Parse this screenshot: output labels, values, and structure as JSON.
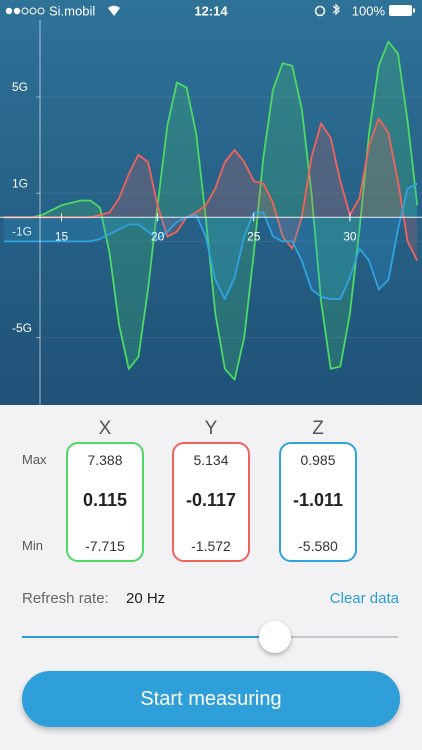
{
  "status_bar": {
    "carrier": "Si.mobil",
    "time": "12:14",
    "battery": "100%"
  },
  "chart_data": {
    "type": "line",
    "x": [
      12,
      12.5,
      13,
      13.5,
      14,
      14.5,
      15,
      15.5,
      16,
      16.5,
      17,
      17.5,
      18,
      18.5,
      19,
      19.5,
      20,
      20.5,
      21,
      21.5,
      22,
      22.5,
      23,
      23.5,
      24,
      24.5,
      25,
      25.5,
      26,
      26.5,
      27,
      27.5,
      28,
      28.5,
      29,
      29.5,
      30,
      30.5,
      31,
      31.5,
      32,
      32.5,
      33,
      33.5
    ],
    "series": [
      {
        "name": "X",
        "color": "#4cd964",
        "values": [
          0,
          0,
          0,
          0,
          0.1,
          0.3,
          0.5,
          0.6,
          0.7,
          0.7,
          0.4,
          -1.5,
          -4.5,
          -6.3,
          -5.8,
          -3,
          0.5,
          3.8,
          5.6,
          5.4,
          3.5,
          0,
          -4,
          -6.3,
          -6.75,
          -5,
          -1.5,
          2.5,
          5.3,
          6.4,
          6.3,
          4.5,
          1,
          -3.5,
          -6.3,
          -6.2,
          -4,
          -0.5,
          3.5,
          6.3,
          7.3,
          6.8,
          4,
          0.5
        ]
      },
      {
        "name": "Y",
        "color": "#f0635a",
        "values": [
          0,
          0,
          0,
          0,
          0,
          0,
          0,
          0,
          0,
          0,
          0.1,
          0.2,
          0.8,
          1.8,
          2.6,
          2.3,
          0.5,
          -0.8,
          -0.6,
          0,
          0.2,
          0.5,
          1.2,
          2.3,
          2.8,
          2.3,
          1.5,
          1.4,
          0.6,
          -0.8,
          -1.3,
          0,
          2.5,
          3.9,
          3.3,
          1.5,
          0.1,
          0.8,
          3,
          4.1,
          3.5,
          1.5,
          -1,
          -1.8
        ]
      },
      {
        "name": "Z",
        "color": "#2fa3e0",
        "values": [
          -1,
          -1,
          -1,
          -1,
          -1,
          -1,
          -1,
          -1,
          -1,
          -1,
          -0.9,
          -0.7,
          -0.5,
          -0.3,
          -0.3,
          -0.6,
          -0.9,
          -0.6,
          -0.2,
          0,
          0.1,
          -0.8,
          -2.6,
          -3.4,
          -2.5,
          -0.8,
          0.2,
          0.2,
          -0.8,
          -1,
          -1,
          -1.8,
          -3,
          -3.3,
          -3.4,
          -3.4,
          -2.5,
          -1.3,
          -1.8,
          -3,
          -2.6,
          -0.5,
          1.2,
          1.4
        ]
      }
    ],
    "xlim": [
      11.8,
      33.75
    ],
    "ylim": [
      -7.8,
      8.2
    ],
    "xticks": [
      15,
      20,
      25,
      30
    ],
    "yticks": [
      {
        "value": 5,
        "label": "5G"
      },
      {
        "value": 1,
        "label": "1G"
      },
      {
        "value": -1,
        "label": "-1G"
      },
      {
        "value": -5,
        "label": "-5G"
      }
    ],
    "grid": true
  },
  "stats": {
    "row_labels": [
      "Max",
      "Min"
    ],
    "columns": [
      {
        "max": "7.388",
        "current": "0.115",
        "min": "-7.715"
      },
      {
        "max": "5.134",
        "current": "-0.117",
        "min": "-1.572"
      },
      {
        "max": "0.985",
        "current": "-1.011",
        "min": "-5.580"
      }
    ]
  },
  "controls": {
    "refresh_label": "Refresh rate:",
    "refresh_value": "20 Hz",
    "clear": "Clear data",
    "start": "Start measuring"
  }
}
